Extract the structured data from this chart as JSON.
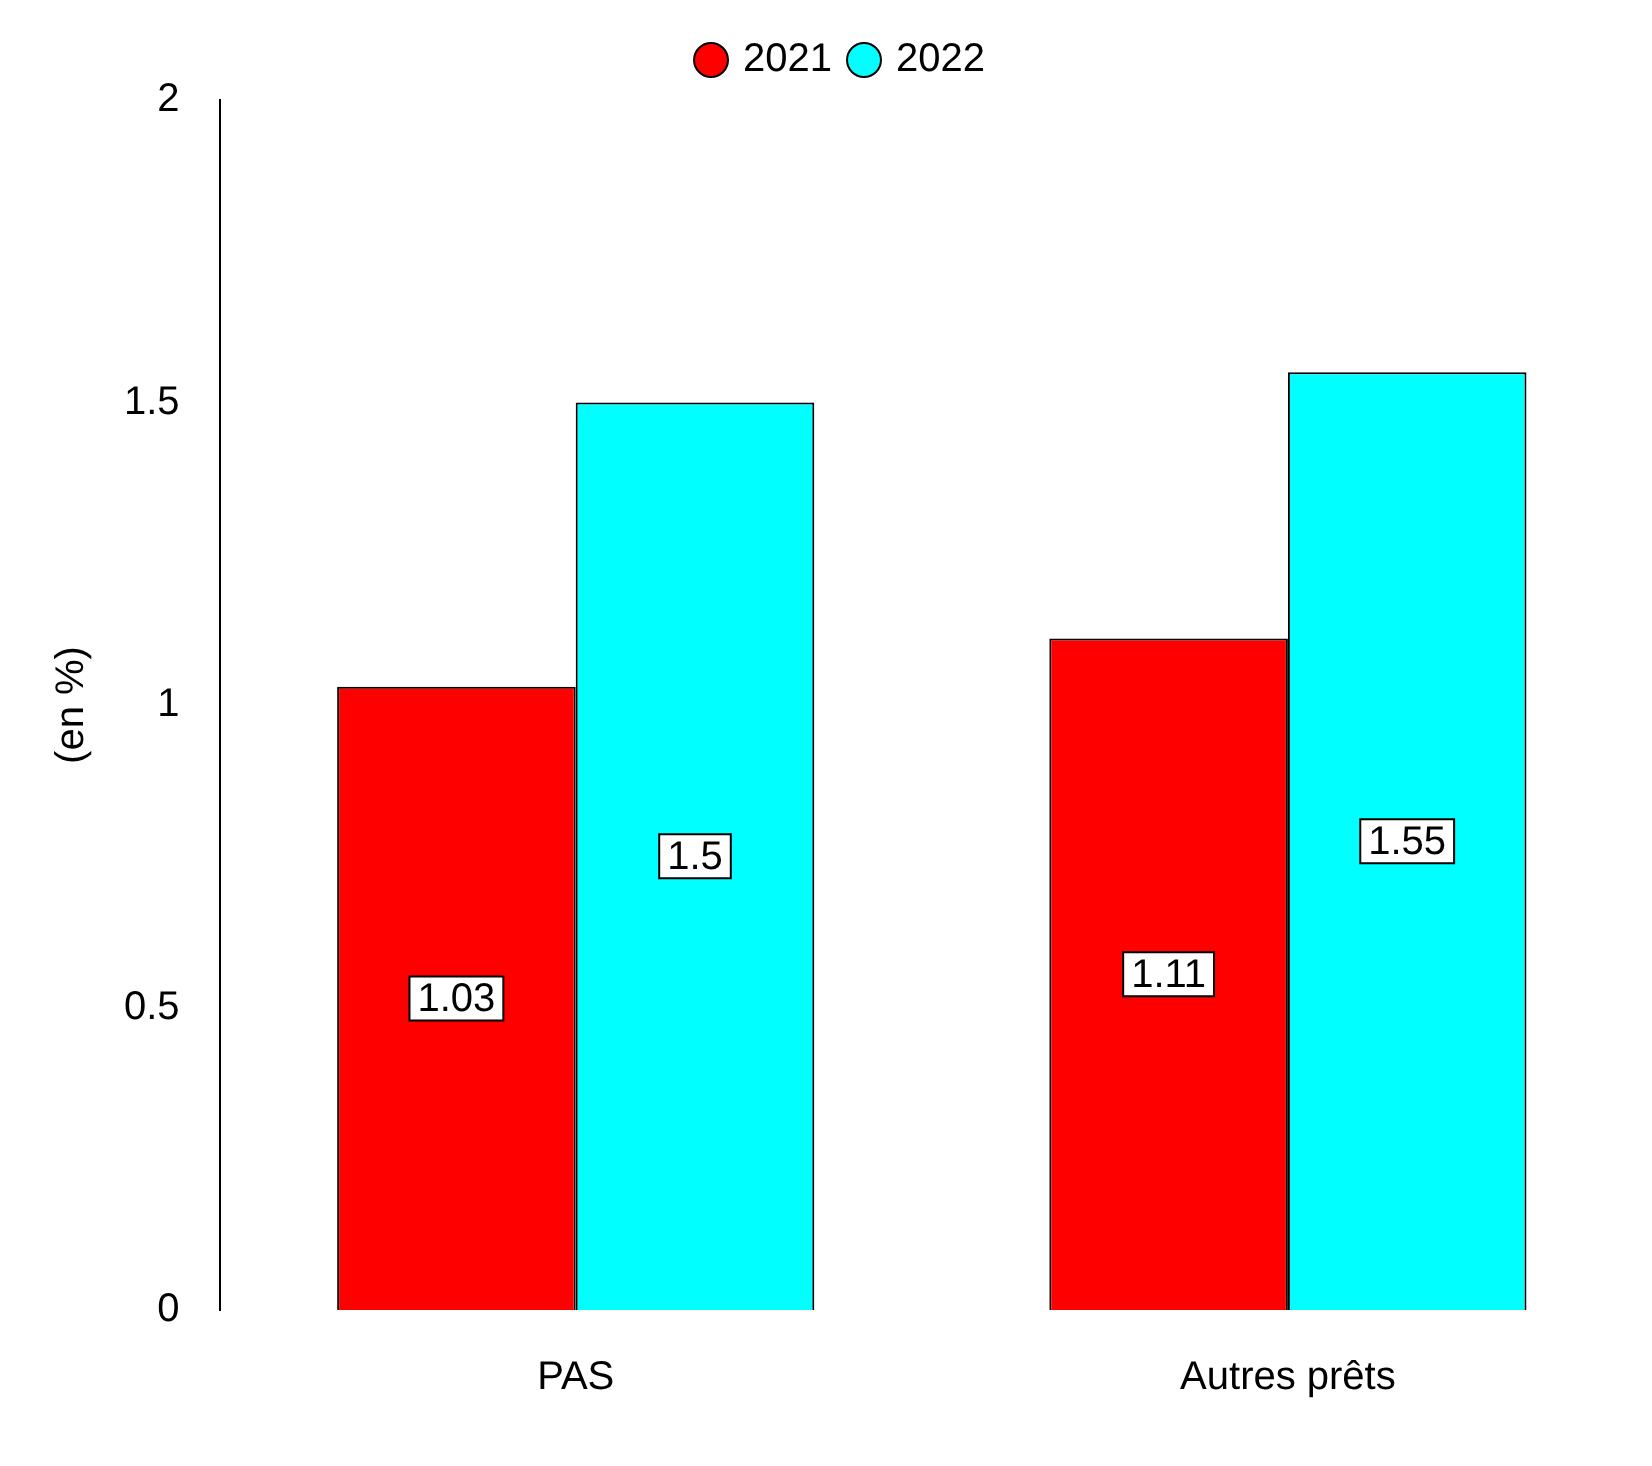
{
  "chart_data": {
    "type": "bar",
    "ylabel": "(en %)",
    "categories": [
      "PAS",
      "Autres prêts"
    ],
    "series": [
      {
        "name": "2021",
        "color": "#ff0000",
        "values": [
          1.03,
          1.11
        ]
      },
      {
        "name": "2022",
        "color": "#00ffff",
        "values": [
          1.5,
          1.55
        ]
      }
    ],
    "ylim": [
      0,
      2
    ],
    "yticks": [
      0,
      0.5,
      1,
      1.5,
      2
    ],
    "grid": false,
    "legend": "top",
    "data_labels": true
  }
}
